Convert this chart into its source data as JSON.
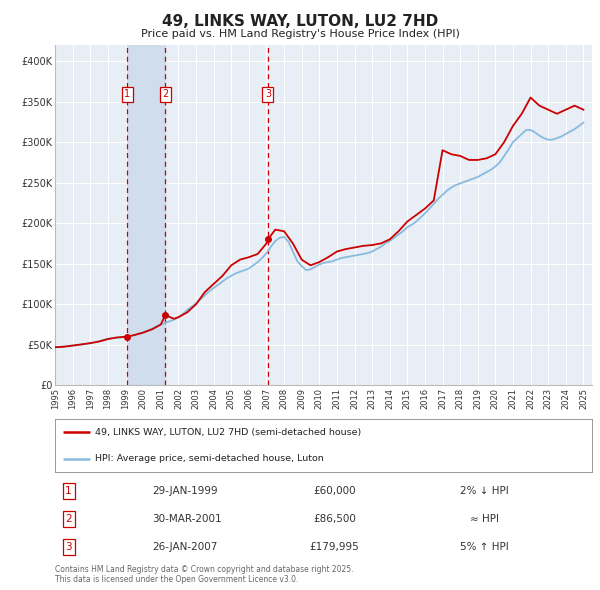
{
  "title": "49, LINKS WAY, LUTON, LU2 7HD",
  "subtitle": "Price paid vs. HM Land Registry's House Price Index (HPI)",
  "title_color": "#222222",
  "bg_color": "#ffffff",
  "plot_bg_color": "#e8eef5",
  "grid_color": "#ffffff",
  "red_line_color": "#cc0000",
  "blue_line_color": "#88bbdd",
  "sale_marker_color": "#cc0000",
  "vline_color": "#cc0000",
  "vband_color": "#cddceb",
  "tick_color": "#333333",
  "legend_label_red": "49, LINKS WAY, LUTON, LU2 7HD (semi-detached house)",
  "legend_label_blue": "HPI: Average price, semi-detached house, Luton",
  "footer": "Contains HM Land Registry data © Crown copyright and database right 2025.\nThis data is licensed under the Open Government Licence v3.0.",
  "sales": [
    {
      "num": 1,
      "date_label": "29-JAN-1999",
      "x": 1999.08,
      "price": 60000,
      "price_label": "£60,000",
      "hpi_note": "2% ↓ HPI"
    },
    {
      "num": 2,
      "date_label": "30-MAR-2001",
      "x": 2001.25,
      "price": 86500,
      "price_label": "£86,500",
      "hpi_note": "≈ HPI"
    },
    {
      "num": 3,
      "date_label": "26-JAN-2007",
      "x": 2007.08,
      "price": 179995,
      "price_label": "£179,995",
      "hpi_note": "5% ↑ HPI"
    }
  ],
  "xlim": [
    1995.0,
    2025.5
  ],
  "ylim": [
    0,
    420000
  ],
  "yticks": [
    0,
    50000,
    100000,
    150000,
    200000,
    250000,
    300000,
    350000,
    400000
  ],
  "ytick_labels": [
    "£0",
    "£50K",
    "£100K",
    "£150K",
    "£200K",
    "£250K",
    "£300K",
    "£350K",
    "£400K"
  ],
  "xtick_years": [
    1995,
    1996,
    1997,
    1998,
    1999,
    2000,
    2001,
    2002,
    2003,
    2004,
    2005,
    2006,
    2007,
    2008,
    2009,
    2010,
    2011,
    2012,
    2013,
    2014,
    2015,
    2016,
    2017,
    2018,
    2019,
    2020,
    2021,
    2022,
    2023,
    2024,
    2025
  ],
  "hpi_x": [
    1995.0,
    1995.25,
    1995.5,
    1995.75,
    1996.0,
    1996.25,
    1996.5,
    1996.75,
    1997.0,
    1997.25,
    1997.5,
    1997.75,
    1998.0,
    1998.25,
    1998.5,
    1998.75,
    1999.0,
    1999.25,
    1999.5,
    1999.75,
    2000.0,
    2000.25,
    2000.5,
    2000.75,
    2001.0,
    2001.25,
    2001.5,
    2001.75,
    2002.0,
    2002.25,
    2002.5,
    2002.75,
    2003.0,
    2003.25,
    2003.5,
    2003.75,
    2004.0,
    2004.25,
    2004.5,
    2004.75,
    2005.0,
    2005.25,
    2005.5,
    2005.75,
    2006.0,
    2006.25,
    2006.5,
    2006.75,
    2007.0,
    2007.25,
    2007.5,
    2007.75,
    2008.0,
    2008.25,
    2008.5,
    2008.75,
    2009.0,
    2009.25,
    2009.5,
    2009.75,
    2010.0,
    2010.25,
    2010.5,
    2010.75,
    2011.0,
    2011.25,
    2011.5,
    2011.75,
    2012.0,
    2012.25,
    2012.5,
    2012.75,
    2013.0,
    2013.25,
    2013.5,
    2013.75,
    2014.0,
    2014.25,
    2014.5,
    2014.75,
    2015.0,
    2015.25,
    2015.5,
    2015.75,
    2016.0,
    2016.25,
    2016.5,
    2016.75,
    2017.0,
    2017.25,
    2017.5,
    2017.75,
    2018.0,
    2018.25,
    2018.5,
    2018.75,
    2019.0,
    2019.25,
    2019.5,
    2019.75,
    2020.0,
    2020.25,
    2020.5,
    2020.75,
    2021.0,
    2021.25,
    2021.5,
    2021.75,
    2022.0,
    2022.25,
    2022.5,
    2022.75,
    2023.0,
    2023.25,
    2023.5,
    2023.75,
    2024.0,
    2024.25,
    2024.5,
    2024.75,
    2025.0
  ],
  "hpi_y": [
    47000,
    47500,
    48000,
    48500,
    49000,
    49500,
    50200,
    51000,
    52000,
    53000,
    54500,
    56000,
    57500,
    58000,
    58500,
    59000,
    59500,
    60500,
    62000,
    63500,
    65500,
    67500,
    70000,
    72500,
    75000,
    77000,
    79000,
    81000,
    84000,
    88000,
    93000,
    97000,
    101000,
    106000,
    111000,
    116000,
    120000,
    124000,
    128000,
    132000,
    135000,
    138000,
    140000,
    142000,
    144000,
    148000,
    152000,
    157000,
    163000,
    171000,
    178000,
    182000,
    183000,
    177000,
    165000,
    153000,
    147000,
    142000,
    143000,
    146000,
    149000,
    151000,
    152000,
    153000,
    155000,
    157000,
    158000,
    159000,
    160000,
    161000,
    162000,
    163000,
    165000,
    168000,
    171000,
    175000,
    178000,
    182000,
    186000,
    190000,
    195000,
    198000,
    202000,
    207000,
    212000,
    218000,
    224000,
    230000,
    235000,
    240000,
    244000,
    247000,
    249000,
    251000,
    253000,
    255000,
    257000,
    260000,
    263000,
    266000,
    270000,
    275000,
    283000,
    291000,
    300000,
    305000,
    310000,
    315000,
    315000,
    312000,
    308000,
    305000,
    303000,
    303000,
    305000,
    307000,
    310000,
    313000,
    316000,
    320000,
    324000
  ],
  "property_x": [
    1995.0,
    1995.5,
    1996.0,
    1996.5,
    1997.0,
    1997.5,
    1998.0,
    1998.5,
    1999.08,
    1999.5,
    2000.0,
    2000.5,
    2001.0,
    2001.25,
    2001.75,
    2002.0,
    2002.5,
    2003.0,
    2003.5,
    2004.0,
    2004.5,
    2005.0,
    2005.5,
    2006.0,
    2006.5,
    2007.0,
    2007.08,
    2007.5,
    2008.0,
    2008.5,
    2009.0,
    2009.5,
    2010.0,
    2010.5,
    2011.0,
    2011.5,
    2012.0,
    2012.5,
    2013.0,
    2013.5,
    2014.0,
    2014.5,
    2015.0,
    2015.5,
    2016.0,
    2016.5,
    2017.0,
    2017.5,
    2018.0,
    2018.5,
    2019.0,
    2019.5,
    2020.0,
    2020.5,
    2021.0,
    2021.5,
    2022.0,
    2022.5,
    2023.0,
    2023.5,
    2024.0,
    2024.5,
    2025.0
  ],
  "property_y": [
    47000,
    47500,
    49000,
    50500,
    52000,
    54000,
    57000,
    59000,
    60000,
    62000,
    65000,
    69000,
    75000,
    86500,
    82000,
    84000,
    90000,
    100000,
    115000,
    125000,
    135000,
    148000,
    155000,
    158000,
    162000,
    175000,
    179995,
    192000,
    190000,
    175000,
    155000,
    148000,
    152000,
    158000,
    165000,
    168000,
    170000,
    172000,
    173000,
    175000,
    180000,
    190000,
    202000,
    210000,
    218000,
    228000,
    290000,
    285000,
    283000,
    278000,
    278000,
    280000,
    285000,
    300000,
    320000,
    335000,
    355000,
    345000,
    340000,
    335000,
    340000,
    345000,
    340000
  ]
}
